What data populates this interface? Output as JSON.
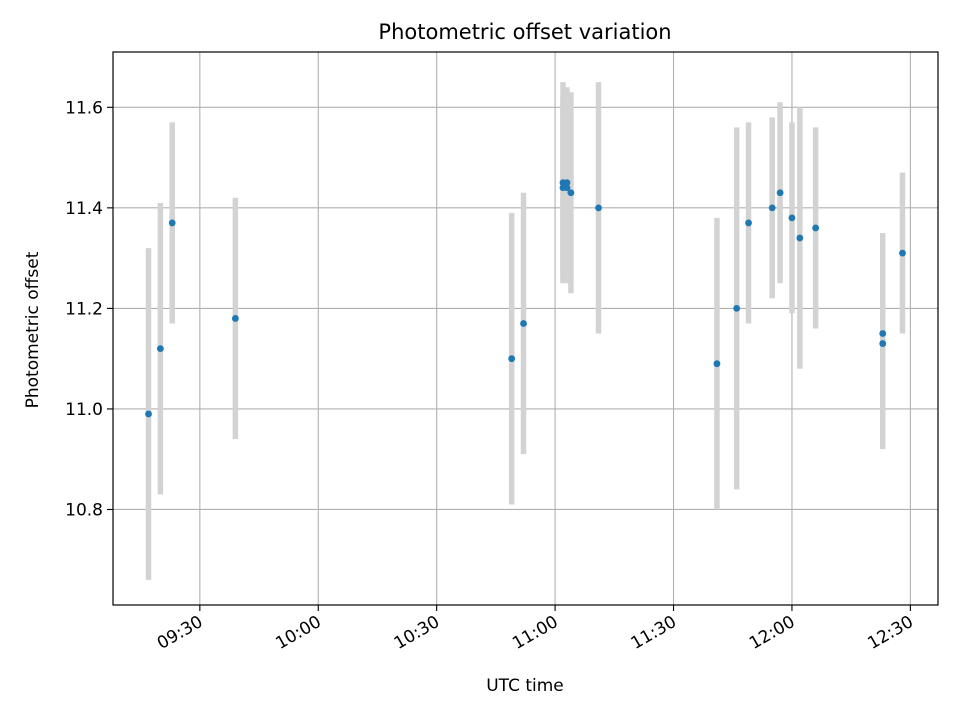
{
  "chart_data": {
    "type": "scatter",
    "title": "Photometric offset variation",
    "xlabel": "UTC time",
    "ylabel": "Photometric offset",
    "grid": true,
    "xlim": [
      "09:08",
      "12:37"
    ],
    "ylim": [
      10.61,
      11.71
    ],
    "x_ticks": [
      "09:30",
      "10:00",
      "10:30",
      "11:00",
      "11:30",
      "12:00",
      "12:30"
    ],
    "y_ticks": [
      10.8,
      11.0,
      11.2,
      11.4,
      11.6
    ],
    "y_tick_labels": [
      "10.8",
      "11.0",
      "11.2",
      "11.4",
      "11.6"
    ],
    "colors": {
      "point": "#1f77b4",
      "errorbar": "#d3d3d3"
    },
    "series": [
      {
        "points": [
          {
            "x": "09:17",
            "y": 10.99,
            "err": 0.33
          },
          {
            "x": "09:20",
            "y": 11.12,
            "err": 0.29
          },
          {
            "x": "09:23",
            "y": 11.37,
            "err": 0.2
          },
          {
            "x": "09:39",
            "y": 11.18,
            "err": 0.24
          },
          {
            "x": "10:49",
            "y": 11.1,
            "err": 0.29
          },
          {
            "x": "10:52",
            "y": 11.17,
            "err": 0.26
          },
          {
            "x": "11:02",
            "y": 11.44,
            "err": 0.18
          },
          {
            "x": "11:02",
            "y": 11.45,
            "err": 0.2
          },
          {
            "x": "11:03",
            "y": 11.44,
            "err": 0.19
          },
          {
            "x": "11:03",
            "y": 11.45,
            "err": 0.19
          },
          {
            "x": "11:04",
            "y": 11.43,
            "err": 0.2
          },
          {
            "x": "11:11",
            "y": 11.4,
            "err": 0.25
          },
          {
            "x": "11:41",
            "y": 11.09,
            "err": 0.29
          },
          {
            "x": "11:46",
            "y": 11.2,
            "err": 0.36
          },
          {
            "x": "11:49",
            "y": 11.37,
            "err": 0.2
          },
          {
            "x": "11:55",
            "y": 11.4,
            "err": 0.18
          },
          {
            "x": "11:57",
            "y": 11.43,
            "err": 0.18
          },
          {
            "x": "12:00",
            "y": 11.38,
            "err": 0.19
          },
          {
            "x": "12:02",
            "y": 11.34,
            "err": 0.26
          },
          {
            "x": "12:06",
            "y": 11.36,
            "err": 0.2
          },
          {
            "x": "12:23",
            "y": 11.15,
            "err": 0.2
          },
          {
            "x": "12:23",
            "y": 11.13,
            "err": 0.21
          },
          {
            "x": "12:28",
            "y": 11.31,
            "err": 0.16
          }
        ]
      }
    ]
  }
}
